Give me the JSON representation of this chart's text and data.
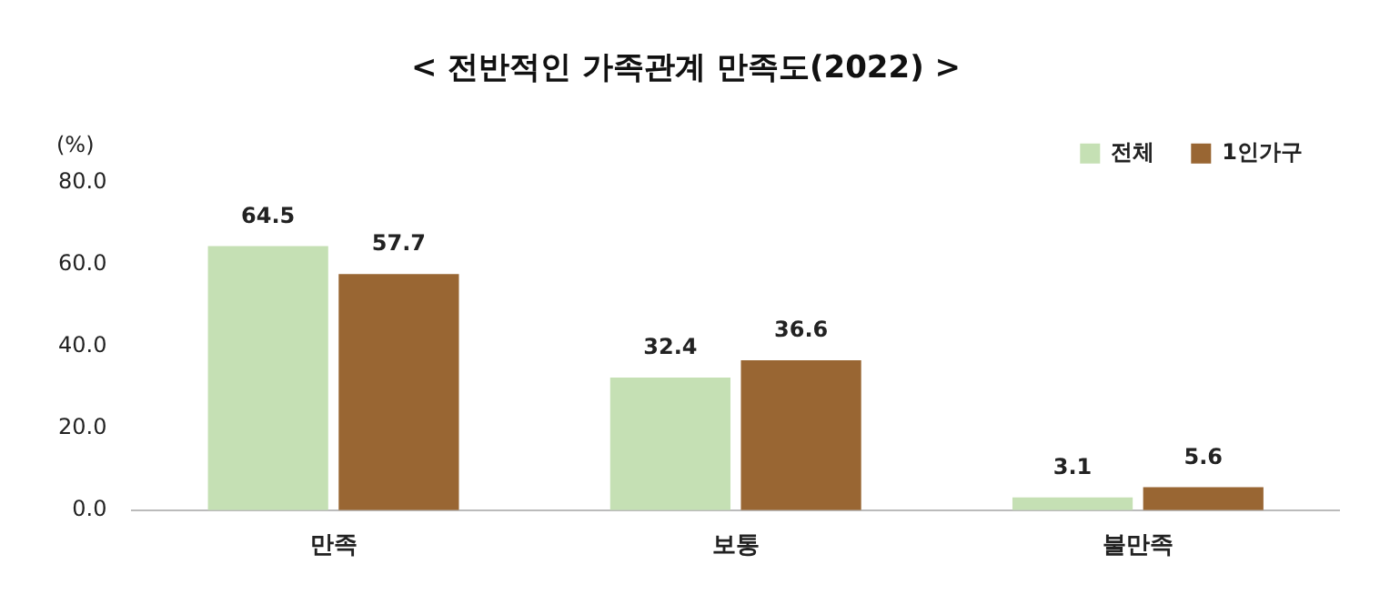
{
  "chart_data": {
    "type": "bar",
    "title": "< 전반적인 가족관계 만족도(2022) >",
    "ylabel": "(%)",
    "categories": [
      "만족",
      "보통",
      "불만족"
    ],
    "series": [
      {
        "name": "전체",
        "color": "#c5e0b4",
        "values": [
          64.5,
          32.4,
          3.1
        ]
      },
      {
        "name": "1인가구",
        "color": "#996633",
        "values": [
          57.7,
          36.6,
          5.6
        ]
      }
    ],
    "ylim": [
      0,
      80
    ],
    "yticks": [
      {
        "value": 0,
        "label": "0.0"
      },
      {
        "value": 20,
        "label": "20.0"
      },
      {
        "value": 40,
        "label": "40.0"
      },
      {
        "value": 60,
        "label": "60.0"
      },
      {
        "value": 80,
        "label": "80.0"
      }
    ],
    "grid": false,
    "legend": "top right",
    "data_labels": true
  }
}
